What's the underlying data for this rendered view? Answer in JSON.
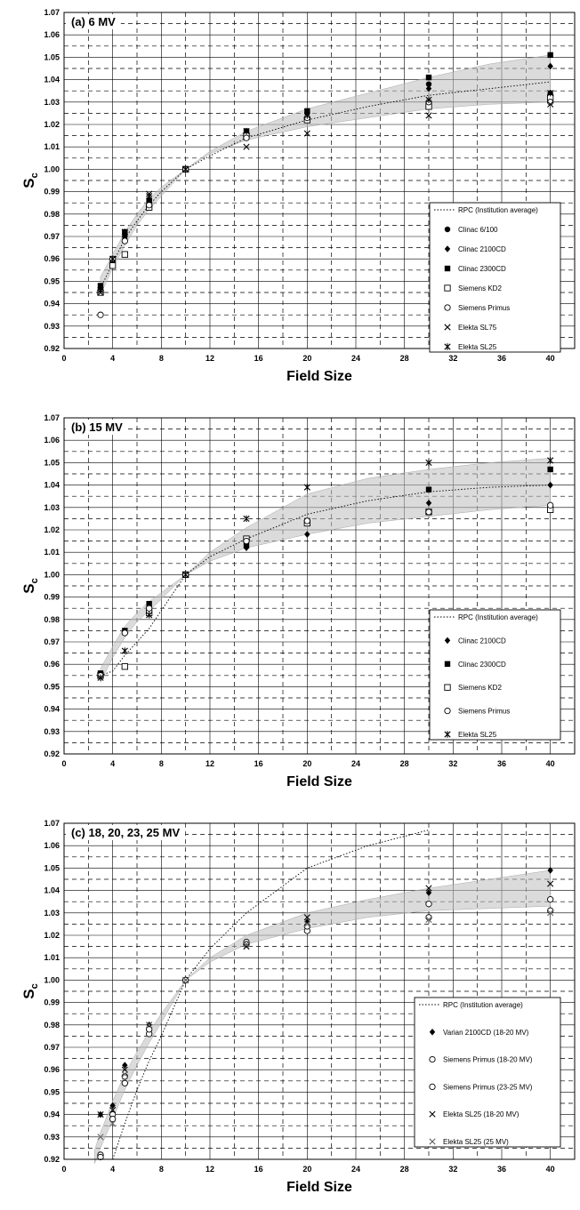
{
  "chart_data": [
    {
      "type": "scatter",
      "title": "(a)  6 MV",
      "xlabel": "Field Size",
      "ylabel": "S",
      "ylabel_sub": "c",
      "xlim": [
        0,
        42
      ],
      "ylim": [
        0.92,
        1.07
      ],
      "xticks": [
        "0",
        "4",
        "8",
        "12",
        "16",
        "20",
        "24",
        "28",
        "32",
        "36",
        "40"
      ],
      "yticks": [
        "0.92",
        "0.93",
        "0.94",
        "0.95",
        "0.96",
        "0.97",
        "0.98",
        "0.99",
        "1.00",
        "1.01",
        "1.02",
        "1.03",
        "1.04",
        "1.05",
        "1.06",
        "1.07"
      ],
      "grid": true,
      "legend_position": "right",
      "band": {
        "x": [
          3,
          4,
          5,
          6,
          7,
          8,
          10,
          12,
          15,
          20,
          25,
          30,
          35,
          40
        ],
        "lower": [
          0.944,
          0.956,
          0.966,
          0.975,
          0.982,
          0.988,
          1.0,
          1.007,
          1.013,
          1.019,
          1.023,
          1.027,
          1.029,
          1.03
        ],
        "upper": [
          0.952,
          0.962,
          0.972,
          0.98,
          0.987,
          0.992,
          1.0,
          1.008,
          1.017,
          1.027,
          1.034,
          1.041,
          1.047,
          1.051
        ]
      },
      "series": [
        {
          "name": "RPC (Institution average)",
          "style": "dotted",
          "x": [
            3,
            4,
            5,
            6,
            7,
            8,
            10,
            12,
            15,
            20,
            25,
            30,
            35,
            40
          ],
          "y": [
            0.947,
            0.958,
            0.969,
            0.977,
            0.984,
            0.99,
            1.0,
            1.006,
            1.014,
            1.022,
            1.028,
            1.033,
            1.036,
            1.039
          ]
        },
        {
          "name": "Clinac 6/100",
          "marker": "filled-circle",
          "x": [
            3,
            4,
            5,
            7,
            10,
            15,
            20,
            30,
            40
          ],
          "y": [
            0.947,
            0.958,
            0.97,
            0.986,
            1.0,
            1.016,
            1.025,
            1.038,
            1.034
          ]
        },
        {
          "name": "Clinac 2100CD",
          "marker": "filled-diamond",
          "x": [
            3,
            4,
            5,
            7,
            10,
            15,
            20,
            30,
            40
          ],
          "y": [
            0.946,
            0.958,
            0.969,
            0.985,
            1.0,
            1.016,
            1.025,
            1.036,
            1.046
          ]
        },
        {
          "name": "Clinac 2300CD",
          "marker": "filled-square",
          "x": [
            3,
            4,
            5,
            7,
            10,
            15,
            20,
            30,
            40
          ],
          "y": [
            0.948,
            0.96,
            0.972,
            0.986,
            1.0,
            1.017,
            1.026,
            1.041,
            1.051
          ]
        },
        {
          "name": "Siemens  KD2",
          "marker": "open-square",
          "x": [
            3,
            4,
            5,
            7,
            10,
            15,
            20,
            30,
            40
          ],
          "y": [
            0.945,
            0.957,
            0.962,
            0.983,
            1.0,
            1.015,
            1.022,
            1.028,
            1.032
          ]
        },
        {
          "name": "Siemens  Primus",
          "marker": "open-circle",
          "x": [
            3,
            4,
            5,
            7,
            10,
            15,
            20,
            30,
            40
          ],
          "y": [
            0.935,
            0.96,
            0.968,
            0.984,
            1.0,
            1.014,
            1.023,
            1.03,
            1.03
          ]
        },
        {
          "name": "Elekta SL75",
          "marker": "x",
          "x": [
            3,
            4,
            5,
            7,
            10,
            15,
            20,
            30,
            40
          ],
          "y": [
            0.945,
            0.96,
            0.972,
            0.989,
            1.0,
            1.01,
            1.016,
            1.024,
            1.029
          ]
        },
        {
          "name": "Elekta SL25",
          "marker": "star",
          "x": [
            3,
            4,
            5,
            7,
            10,
            15,
            20,
            30,
            40
          ],
          "y": [
            0.946,
            0.96,
            0.972,
            0.988,
            1.0,
            1.017,
            1.024,
            1.031,
            1.034
          ]
        }
      ]
    },
    {
      "type": "scatter",
      "title": "(b)  15 MV",
      "xlabel": "Field Size",
      "ylabel": "S",
      "ylabel_sub": "c",
      "xlim": [
        0,
        42
      ],
      "ylim": [
        0.92,
        1.07
      ],
      "xticks": [
        "0",
        "4",
        "8",
        "12",
        "16",
        "20",
        "24",
        "28",
        "32",
        "36",
        "40"
      ],
      "yticks": [
        "0.92",
        "0.93",
        "0.94",
        "0.95",
        "0.96",
        "0.97",
        "0.98",
        "0.99",
        "1.00",
        "1.01",
        "1.02",
        "1.03",
        "1.04",
        "1.05",
        "1.06",
        "1.07"
      ],
      "grid": true,
      "legend_position": "right",
      "band": {
        "x": [
          3,
          4,
          5,
          6,
          7,
          8,
          10,
          12,
          15,
          20,
          25,
          30,
          35,
          40
        ],
        "lower": [
          0.952,
          0.963,
          0.972,
          0.979,
          0.984,
          0.989,
          1.0,
          1.006,
          1.012,
          1.018,
          1.023,
          1.026,
          1.029,
          1.031
        ],
        "upper": [
          0.958,
          0.968,
          0.977,
          0.983,
          0.988,
          0.992,
          1.0,
          1.01,
          1.021,
          1.036,
          1.043,
          1.047,
          1.05,
          1.052
        ]
      },
      "series": [
        {
          "name": "RPC (Institution average)",
          "style": "dotted",
          "x": [
            3,
            4,
            5,
            6,
            7,
            8,
            10,
            12,
            15,
            20,
            25,
            30,
            35,
            40
          ],
          "y": [
            0.955,
            0.957,
            0.964,
            0.97,
            0.976,
            0.984,
            1.0,
            1.008,
            1.016,
            1.027,
            1.033,
            1.037,
            1.039,
            1.04
          ]
        },
        {
          "name": "Clinac 2100CD",
          "marker": "filled-diamond",
          "x": [
            3,
            5,
            7,
            10,
            15,
            20,
            30,
            40
          ],
          "y": [
            0.955,
            0.974,
            0.986,
            1.0,
            1.012,
            1.018,
            1.032,
            1.04
          ]
        },
        {
          "name": "Clinac 2300CD",
          "marker": "filled-square",
          "x": [
            3,
            5,
            7,
            10,
            15,
            20,
            30,
            40
          ],
          "y": [
            0.956,
            0.975,
            0.987,
            1.0,
            1.013,
            1.024,
            1.038,
            1.047
          ]
        },
        {
          "name": "Siemens  KD2",
          "marker": "open-square",
          "x": [
            3,
            5,
            7,
            10,
            15,
            20,
            30,
            40
          ],
          "y": [
            0.955,
            0.959,
            0.983,
            1.0,
            1.016,
            1.023,
            1.028,
            1.029
          ]
        },
        {
          "name": "Siemens Primus",
          "marker": "open-circle",
          "x": [
            3,
            5,
            7,
            10,
            15,
            20,
            30,
            40
          ],
          "y": [
            0.955,
            0.974,
            0.985,
            1.0,
            1.015,
            1.024,
            1.028,
            1.031
          ]
        },
        {
          "name": "Elekta SL25",
          "marker": "star",
          "x": [
            3,
            5,
            7,
            10,
            15,
            20,
            30,
            40
          ],
          "y": [
            0.954,
            0.966,
            0.982,
            1.0,
            1.025,
            1.039,
            1.05,
            1.051
          ]
        }
      ]
    },
    {
      "type": "scatter",
      "title": "(c)  18, 20, 23, 25 MV",
      "xlabel": "Field Size",
      "ylabel": "S",
      "ylabel_sub": "c",
      "xlim": [
        0,
        42
      ],
      "ylim": [
        0.92,
        1.07
      ],
      "xticks": [
        "0",
        "4",
        "8",
        "12",
        "16",
        "20",
        "24",
        "28",
        "32",
        "36",
        "40"
      ],
      "yticks": [
        "0.92",
        "0.93",
        "0.94",
        "0.95",
        "0.96",
        "0.97",
        "0.98",
        "0.99",
        "1.00",
        "1.01",
        "1.02",
        "1.03",
        "1.04",
        "1.05",
        "1.06",
        "1.07"
      ],
      "grid": true,
      "legend_position": "right",
      "band": {
        "x": [
          2.5,
          3,
          4,
          5,
          6,
          7,
          8,
          10,
          12,
          15,
          20,
          25,
          30,
          35,
          40
        ],
        "lower": [
          0.918,
          0.925,
          0.938,
          0.951,
          0.962,
          0.972,
          0.981,
          1.0,
          1.008,
          1.016,
          1.023,
          1.028,
          1.031,
          1.032,
          1.033
        ],
        "upper": [
          0.924,
          0.932,
          0.946,
          0.958,
          0.968,
          0.977,
          0.985,
          1.0,
          1.01,
          1.02,
          1.03,
          1.036,
          1.041,
          1.045,
          1.049
        ]
      },
      "series": [
        {
          "name": "RPC (Institution average)",
          "style": "dotted",
          "x": [
            4,
            5,
            6,
            7,
            8,
            10,
            12,
            15,
            20,
            25,
            30
          ],
          "y": [
            0.92,
            0.936,
            0.951,
            0.964,
            0.975,
            1.0,
            1.014,
            1.03,
            1.05,
            1.06,
            1.067
          ]
        },
        {
          "name": "Varian 2100CD (18-20 MV)",
          "marker": "filled-diamond",
          "x": [
            3,
            4,
            5,
            7,
            10,
            15,
            20,
            30,
            40
          ],
          "y": [
            0.94,
            0.944,
            0.962,
            0.98,
            1.0,
            1.017,
            1.026,
            1.039,
            1.049
          ]
        },
        {
          "name": "Siemens  Primus (18-20 MV)",
          "marker": "open-circle",
          "x": [
            3,
            4,
            5,
            7,
            10,
            15,
            20,
            30,
            40
          ],
          "y": [
            0.922,
            0.94,
            0.957,
            0.976,
            1.0,
            1.017,
            1.022,
            1.034,
            1.036
          ]
        },
        {
          "name": "Siemens Primus (23-25 MV)",
          "marker": "open-circle",
          "x": [
            3,
            4,
            5,
            7,
            10,
            15,
            20,
            30,
            40
          ],
          "y": [
            0.921,
            0.938,
            0.954,
            0.978,
            1.0,
            1.016,
            1.024,
            1.028,
            1.031
          ]
        },
        {
          "name": "Elekta SL25 (18-20 MV)",
          "marker": "x",
          "x": [
            3,
            4,
            5,
            7,
            10,
            15,
            20,
            30,
            40
          ],
          "y": [
            0.94,
            0.942,
            0.96,
            0.98,
            1.0,
            1.015,
            1.028,
            1.041,
            1.043
          ]
        },
        {
          "name": "Elekta SL25 (25 MV)",
          "marker": "x-light",
          "x": [
            3,
            4,
            5,
            7,
            10,
            15,
            20,
            30,
            40
          ],
          "y": [
            0.93,
            0.936,
            0.958,
            0.98,
            1.0,
            1.016,
            1.025,
            1.027,
            1.03
          ]
        }
      ]
    }
  ]
}
